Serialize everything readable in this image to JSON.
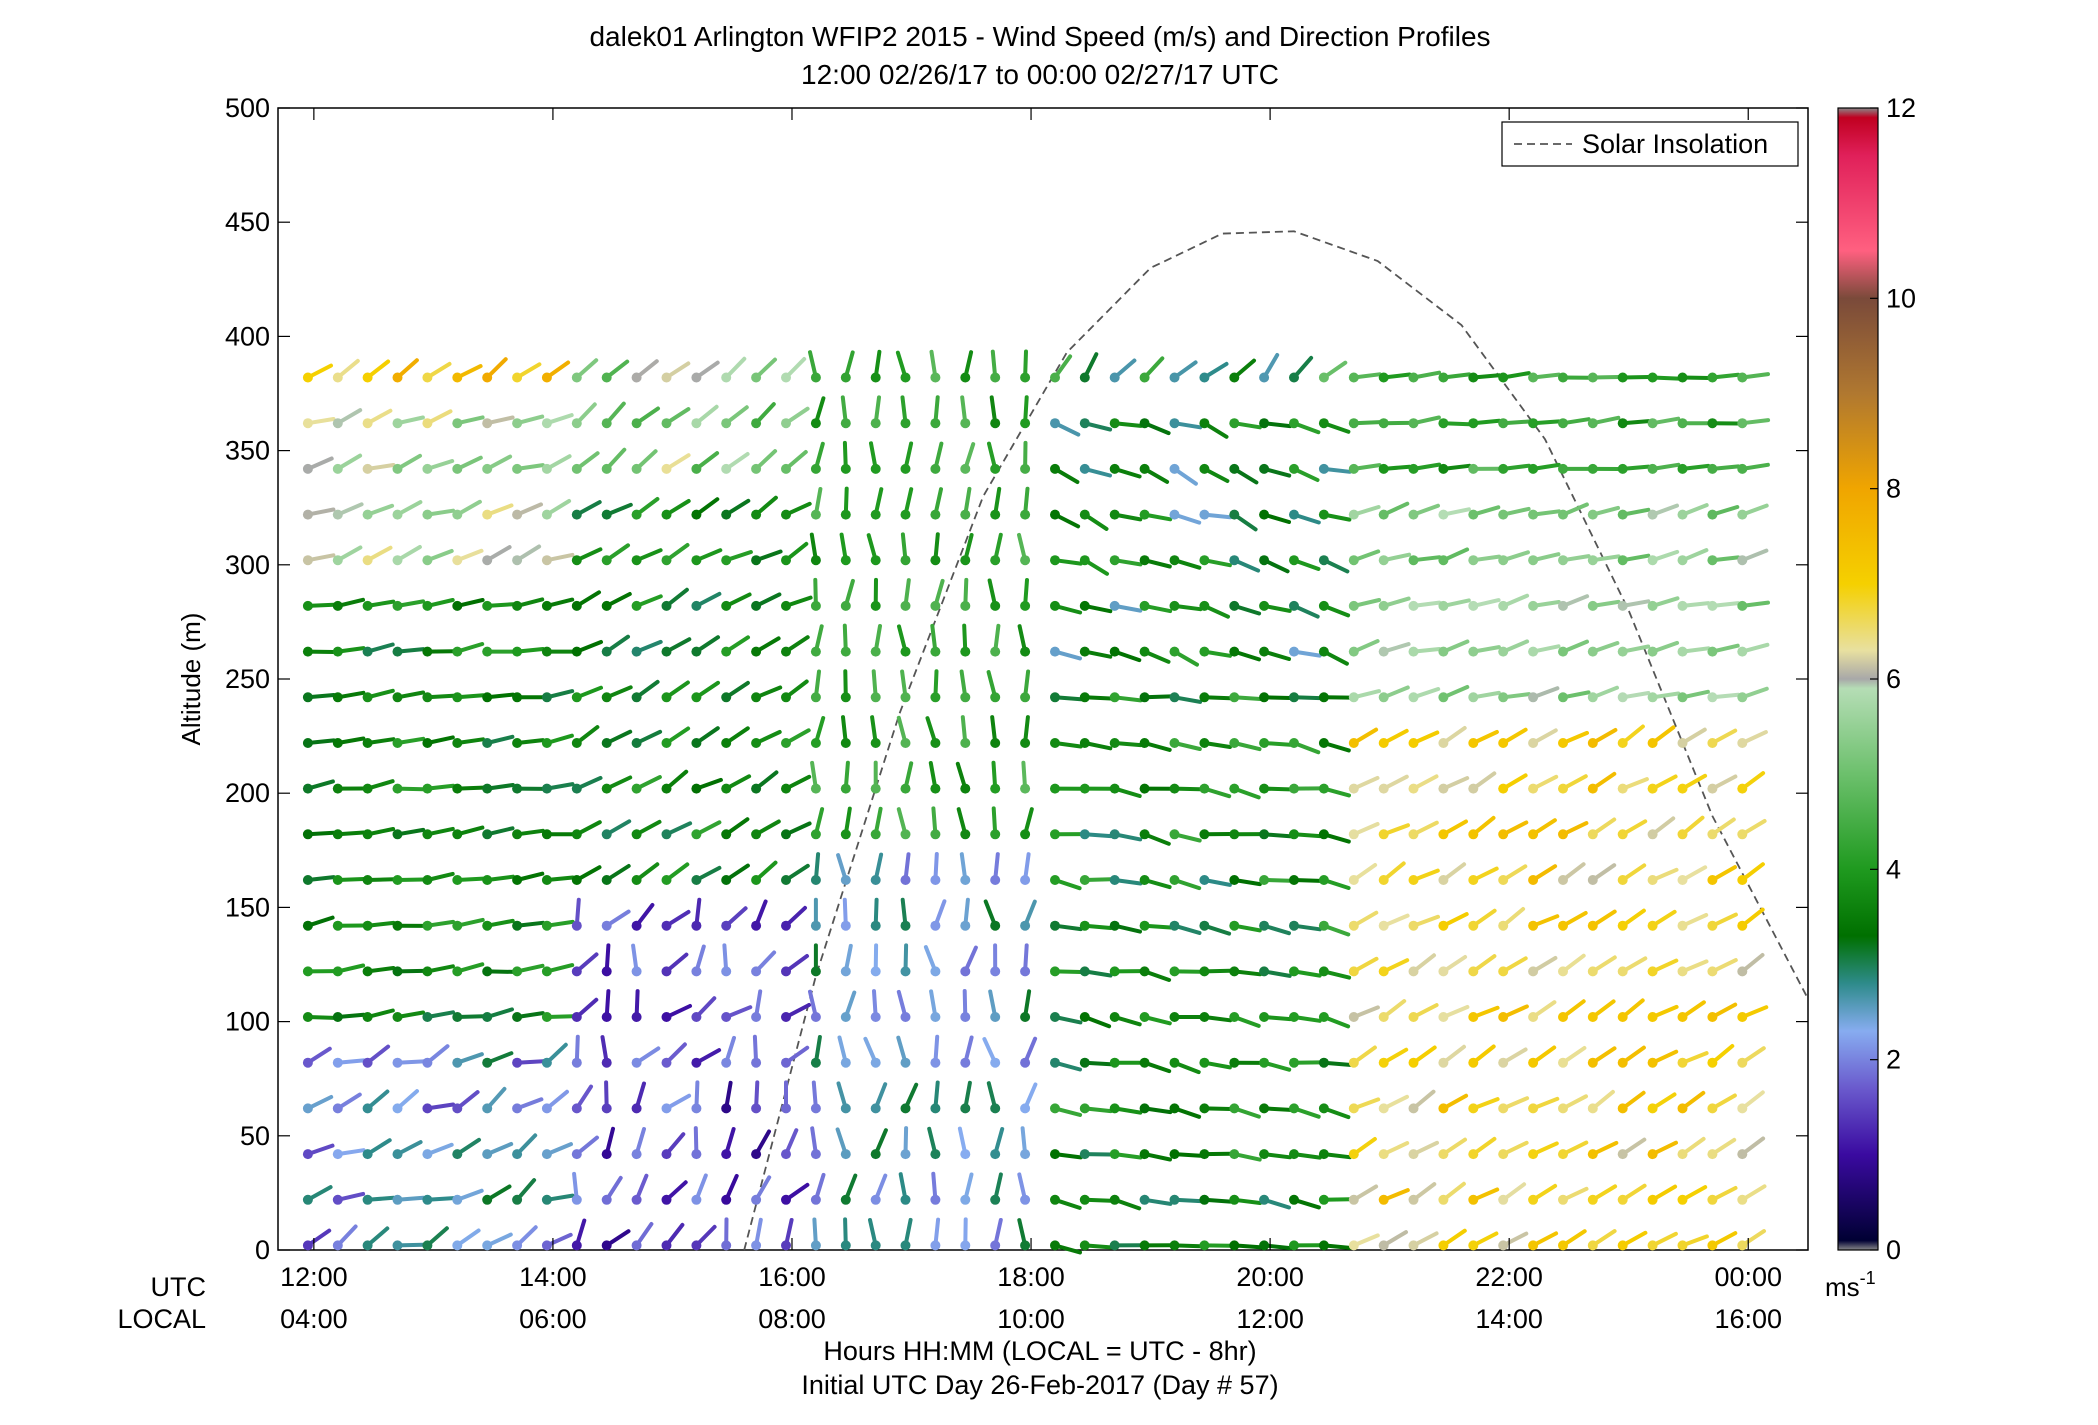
{
  "figure": {
    "title": "dalek01 Arlington WFIP2 2015 - Wind Speed (m/s) and Direction Profiles",
    "subtitle": "12:00 02/26/17 to 00:00 02/27/17  UTC",
    "row_label_utc": "UTC",
    "row_label_local": "LOCAL",
    "xlabel": "Hours HH:MM  (LOCAL = UTC - 8hr)",
    "xlabel2": "Initial UTC Day 26-Feb-2017 (Day # 57)",
    "ylabel": "Altitude (m)",
    "legend_label": "Solar Insolation",
    "colorbar_unit": "ms",
    "colorbar_unit_exp": "-1"
  },
  "chart_data": {
    "type": "scatter",
    "subtype": "wind-barb-profile",
    "xlim_hours_utc": [
      11.7,
      24.5
    ],
    "ylim": [
      0,
      500
    ],
    "yticks": [
      0,
      50,
      100,
      150,
      200,
      250,
      300,
      350,
      400,
      450,
      500
    ],
    "xticks": [
      {
        "hour": 12,
        "utc": "12:00",
        "local": "04:00"
      },
      {
        "hour": 14,
        "utc": "14:00",
        "local": "06:00"
      },
      {
        "hour": 16,
        "utc": "16:00",
        "local": "08:00"
      },
      {
        "hour": 18,
        "utc": "18:00",
        "local": "10:00"
      },
      {
        "hour": 20,
        "utc": "20:00",
        "local": "12:00"
      },
      {
        "hour": 22,
        "utc": "22:00",
        "local": "14:00"
      },
      {
        "hour": 24,
        "utc": "00:00",
        "local": "16:00"
      }
    ],
    "altitudes": [
      2,
      22,
      42,
      62,
      82,
      102,
      122,
      142,
      162,
      182,
      202,
      222,
      242,
      262,
      282,
      302,
      322,
      342,
      362,
      382
    ],
    "time_start": 11.95,
    "time_step": 0.25,
    "time_count": 49,
    "colorbar": {
      "min": 0,
      "max": 12,
      "ticks": [
        0,
        2,
        4,
        6,
        8,
        10,
        12
      ],
      "stops": [
        {
          "v": 0.0,
          "c": "#888888"
        },
        {
          "v": 0.1,
          "c": "#000033"
        },
        {
          "v": 1.0,
          "c": "#3a0aa0"
        },
        {
          "v": 1.7,
          "c": "#6a5acd"
        },
        {
          "v": 2.3,
          "c": "#87acf0"
        },
        {
          "v": 2.8,
          "c": "#2e8b8b"
        },
        {
          "v": 3.3,
          "c": "#007000"
        },
        {
          "v": 4.0,
          "c": "#1f9a1f"
        },
        {
          "v": 5.0,
          "c": "#6cc06c"
        },
        {
          "v": 5.9,
          "c": "#b5ddb5"
        },
        {
          "v": 6.0,
          "c": "#a8a8a8"
        },
        {
          "v": 6.3,
          "c": "#e8e0a0"
        },
        {
          "v": 7.0,
          "c": "#f5d000"
        },
        {
          "v": 8.0,
          "c": "#f0a500"
        },
        {
          "v": 9.0,
          "c": "#b07830"
        },
        {
          "v": 10.0,
          "c": "#7a4a3a"
        },
        {
          "v": 10.5,
          "c": "#ff6080"
        },
        {
          "v": 11.5,
          "c": "#e0205a"
        },
        {
          "v": 11.9,
          "c": "#c00020"
        },
        {
          "v": 12.0,
          "c": "#888888"
        }
      ]
    },
    "regimes": [
      {
        "t0": 11.9,
        "t1": 14.0,
        "z0": 0,
        "z1": 100,
        "speed": 2.3,
        "speed_var": 0.9,
        "dir": 245,
        "dir_var": 25
      },
      {
        "t0": 11.9,
        "t1": 14.0,
        "z0": 100,
        "z1": 290,
        "speed": 3.6,
        "speed_var": 0.6,
        "dir": 262,
        "dir_var": 10
      },
      {
        "t0": 11.9,
        "t1": 14.0,
        "z0": 290,
        "z1": 380,
        "speed": 5.8,
        "speed_var": 0.8,
        "dir": 250,
        "dir_var": 12
      },
      {
        "t0": 11.9,
        "t1": 14.0,
        "z0": 380,
        "z1": 510,
        "speed": 7.2,
        "speed_var": 0.9,
        "dir": 235,
        "dir_var": 10
      },
      {
        "t0": 14.0,
        "t1": 16.0,
        "z0": 0,
        "z1": 160,
        "speed": 1.5,
        "speed_var": 0.7,
        "dir": 210,
        "dir_var": 40
      },
      {
        "t0": 14.0,
        "t1": 16.0,
        "z0": 160,
        "z1": 330,
        "speed": 3.6,
        "speed_var": 0.7,
        "dir": 240,
        "dir_var": 12
      },
      {
        "t0": 14.0,
        "t1": 16.0,
        "z0": 330,
        "z1": 510,
        "speed": 5.4,
        "speed_var": 1.0,
        "dir": 230,
        "dir_var": 10
      },
      {
        "t0": 16.0,
        "t1": 18.0,
        "z0": 0,
        "z1": 180,
        "speed": 2.5,
        "speed_var": 0.7,
        "dir": 180,
        "dir_var": 25
      },
      {
        "t0": 16.0,
        "t1": 18.0,
        "z0": 180,
        "z1": 390,
        "speed": 4.2,
        "speed_var": 0.6,
        "dir": 180,
        "dir_var": 18
      },
      {
        "t0": 16.0,
        "t1": 18.0,
        "z0": 390,
        "z1": 510,
        "speed": 6.3,
        "speed_var": 0.9,
        "dir": 180,
        "dir_var": 15
      },
      {
        "t0": 18.0,
        "t1": 20.5,
        "z0": 0,
        "z1": 250,
        "speed": 3.6,
        "speed_var": 0.8,
        "dir": 280,
        "dir_var": 12
      },
      {
        "t0": 18.0,
        "t1": 20.5,
        "z0": 250,
        "z1": 380,
        "speed": 3.3,
        "speed_var": 0.9,
        "dir": 290,
        "dir_var": 15
      },
      {
        "t0": 18.0,
        "t1": 20.5,
        "z0": 380,
        "z1": 510,
        "speed": 3.8,
        "speed_var": 1.2,
        "dir": 220,
        "dir_var": 20
      },
      {
        "t0": 20.5,
        "t1": 24.5,
        "z0": 0,
        "z1": 240,
        "speed": 6.8,
        "speed_var": 0.7,
        "dir": 240,
        "dir_var": 10
      },
      {
        "t0": 20.5,
        "t1": 24.5,
        "z0": 240,
        "z1": 330,
        "speed": 5.4,
        "speed_var": 0.6,
        "dir": 255,
        "dir_var": 10
      },
      {
        "t0": 20.5,
        "t1": 24.5,
        "z0": 330,
        "z1": 510,
        "speed": 4.3,
        "speed_var": 0.6,
        "dir": 265,
        "dir_var": 8
      }
    ],
    "solar_insolation_curve": {
      "units": "relative, altitude-axis units",
      "points": [
        {
          "t": 15.6,
          "z": 0
        },
        {
          "t": 16.2,
          "z": 120
        },
        {
          "t": 16.9,
          "z": 235
        },
        {
          "t": 17.6,
          "z": 330
        },
        {
          "t": 18.3,
          "z": 393
        },
        {
          "t": 19.0,
          "z": 430
        },
        {
          "t": 19.6,
          "z": 445
        },
        {
          "t": 20.2,
          "z": 446
        },
        {
          "t": 20.9,
          "z": 433
        },
        {
          "t": 21.6,
          "z": 405
        },
        {
          "t": 22.3,
          "z": 355
        },
        {
          "t": 23.0,
          "z": 280
        },
        {
          "t": 23.7,
          "z": 190
        },
        {
          "t": 24.5,
          "z": 110
        }
      ]
    }
  }
}
